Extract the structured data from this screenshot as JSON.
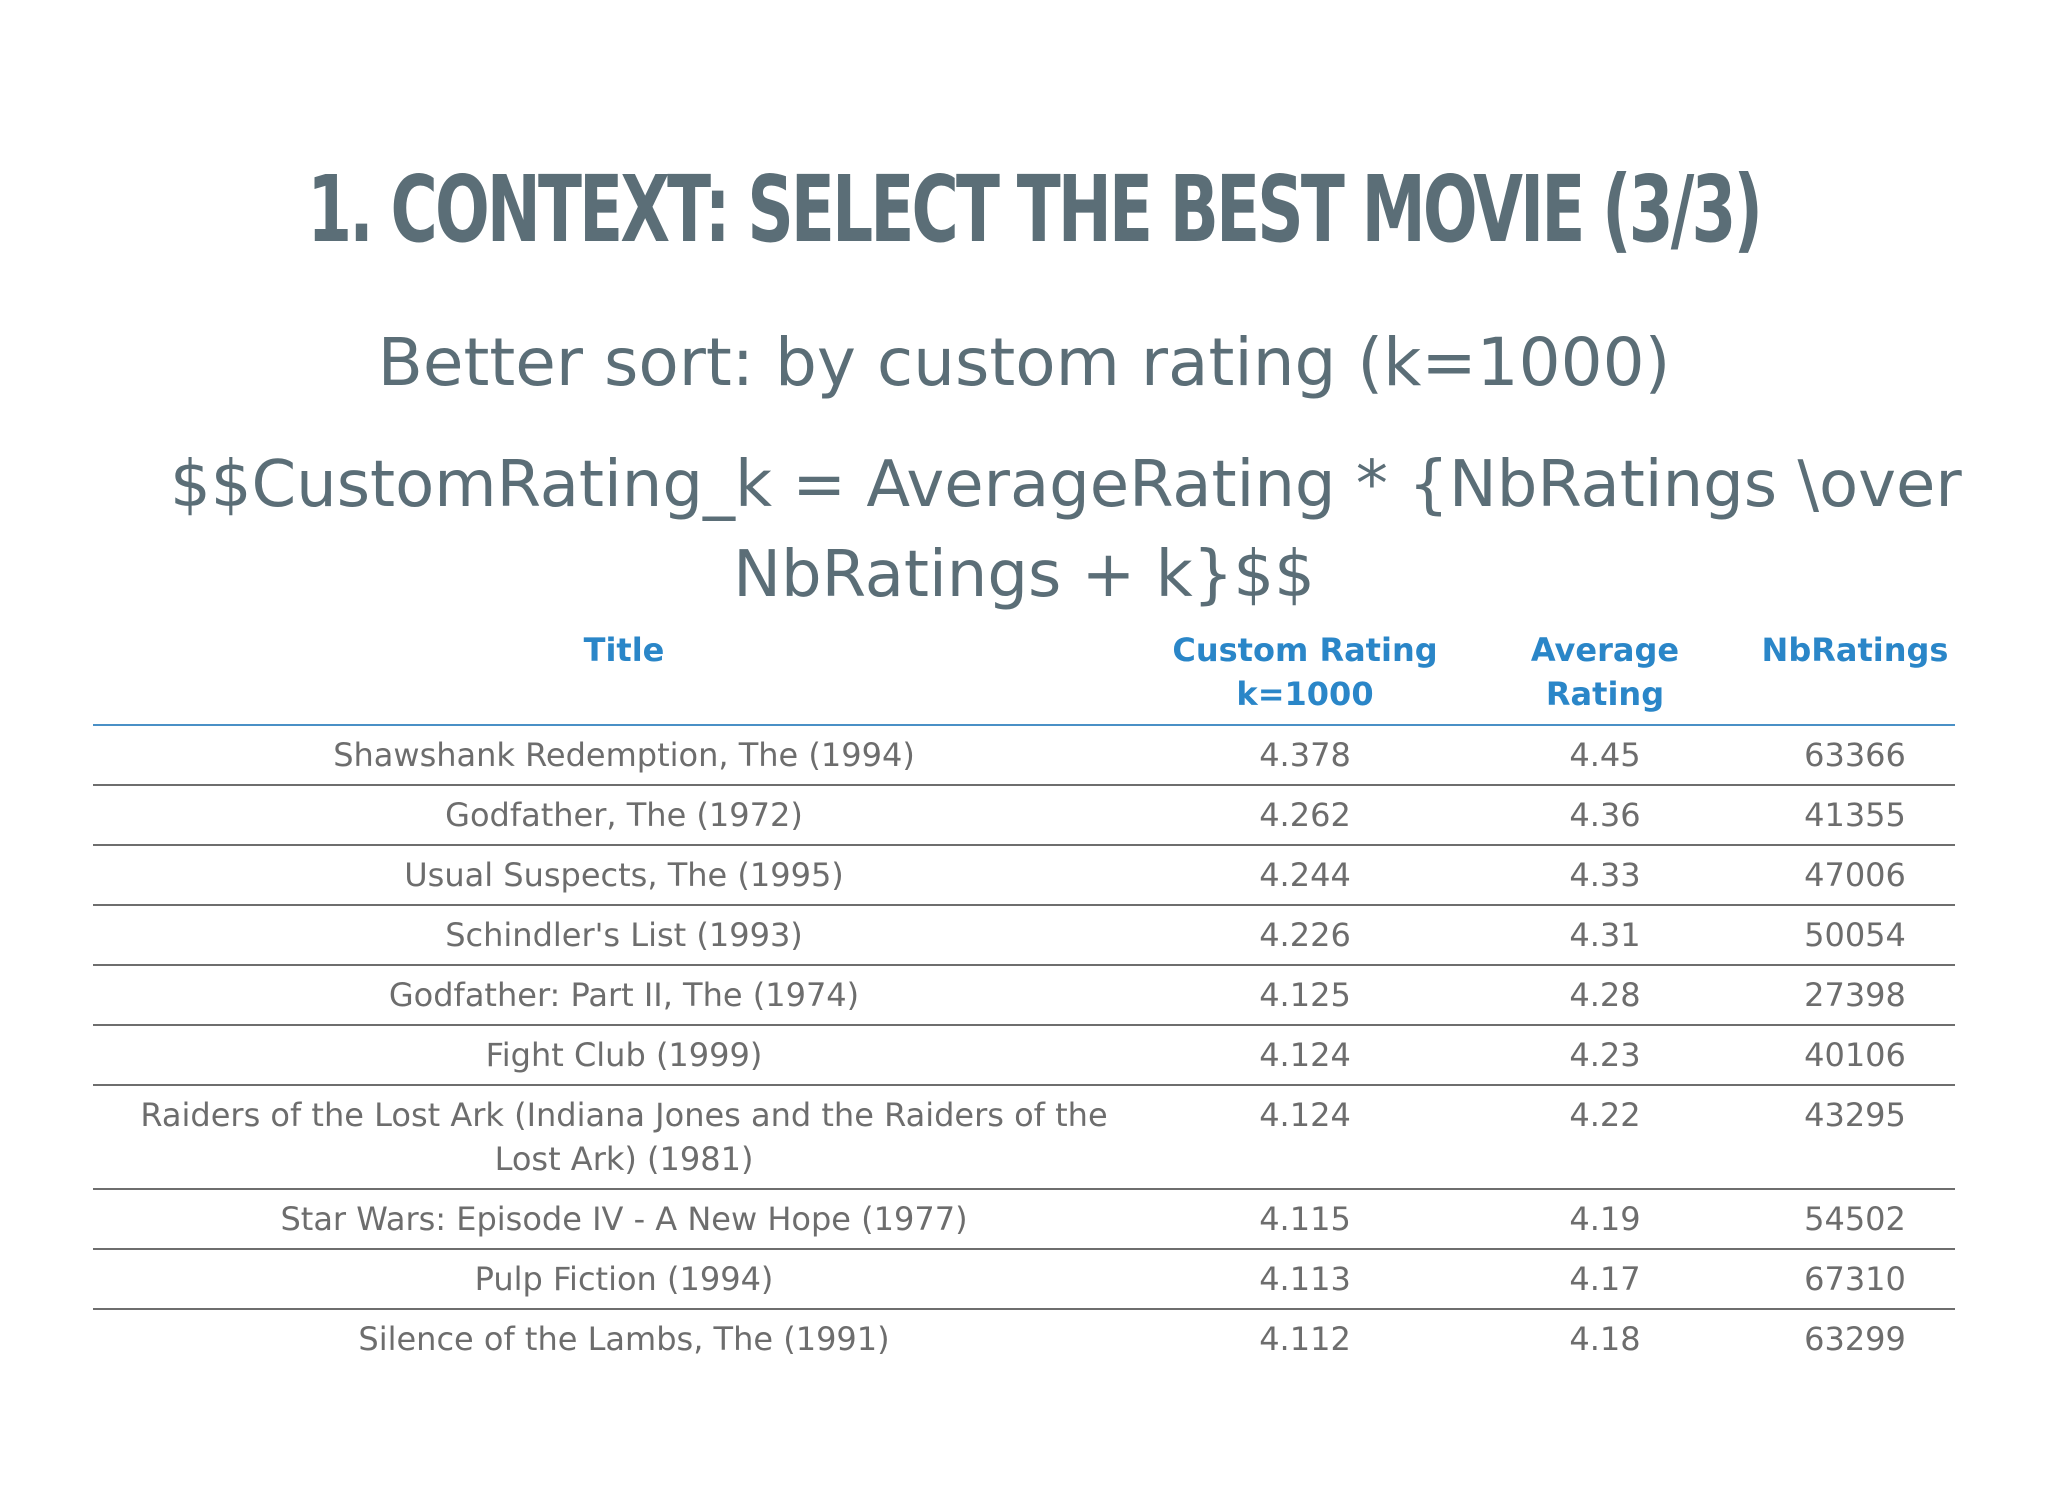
{
  "slide": {
    "title": "1. CONTEXT: SELECT THE BEST MOVIE (3/3)",
    "subtitle": "Better sort: by custom rating (k=1000)",
    "formula_line1": "$$CustomRating_k = AverageRating * {NbRatings \\over",
    "formula_line2": "NbRatings + k}$$"
  },
  "table": {
    "headers": {
      "title": "Title",
      "custom_rating_line1": "Custom Rating",
      "custom_rating_line2": "k=1000",
      "average_rating_line1": "Average",
      "average_rating_line2": "Rating",
      "nb_ratings": "NbRatings"
    },
    "rows": [
      {
        "title": "Shawshank Redemption, The (1994)",
        "custom_rating": "4.378",
        "average_rating": "4.45",
        "nb_ratings": "63366"
      },
      {
        "title": "Godfather, The (1972)",
        "custom_rating": "4.262",
        "average_rating": "4.36",
        "nb_ratings": "41355"
      },
      {
        "title": "Usual Suspects, The (1995)",
        "custom_rating": "4.244",
        "average_rating": "4.33",
        "nb_ratings": "47006"
      },
      {
        "title": "Schindler's List (1993)",
        "custom_rating": "4.226",
        "average_rating": "4.31",
        "nb_ratings": "50054"
      },
      {
        "title": "Godfather: Part II, The (1974)",
        "custom_rating": "4.125",
        "average_rating": "4.28",
        "nb_ratings": "27398"
      },
      {
        "title": "Fight Club (1999)",
        "custom_rating": "4.124",
        "average_rating": "4.23",
        "nb_ratings": "40106"
      },
      {
        "title": "Raiders of the Lost Ark (Indiana Jones and the Raiders of the Lost Ark) (1981)",
        "custom_rating": "4.124",
        "average_rating": "4.22",
        "nb_ratings": "43295"
      },
      {
        "title": "Star Wars: Episode IV - A New Hope (1977)",
        "custom_rating": "4.115",
        "average_rating": "4.19",
        "nb_ratings": "54502"
      },
      {
        "title": "Pulp Fiction (1994)",
        "custom_rating": "4.113",
        "average_rating": "4.17",
        "nb_ratings": "67310"
      },
      {
        "title": "Silence of the Lambs, The (1991)",
        "custom_rating": "4.112",
        "average_rating": "4.18",
        "nb_ratings": "63299"
      }
    ]
  },
  "colors": {
    "heading": "#5b6e77",
    "table_header": "#2a86c8",
    "table_text": "#6d6d6d",
    "header_rule": "#4a90c6",
    "row_rule": "#6e6e6e"
  }
}
